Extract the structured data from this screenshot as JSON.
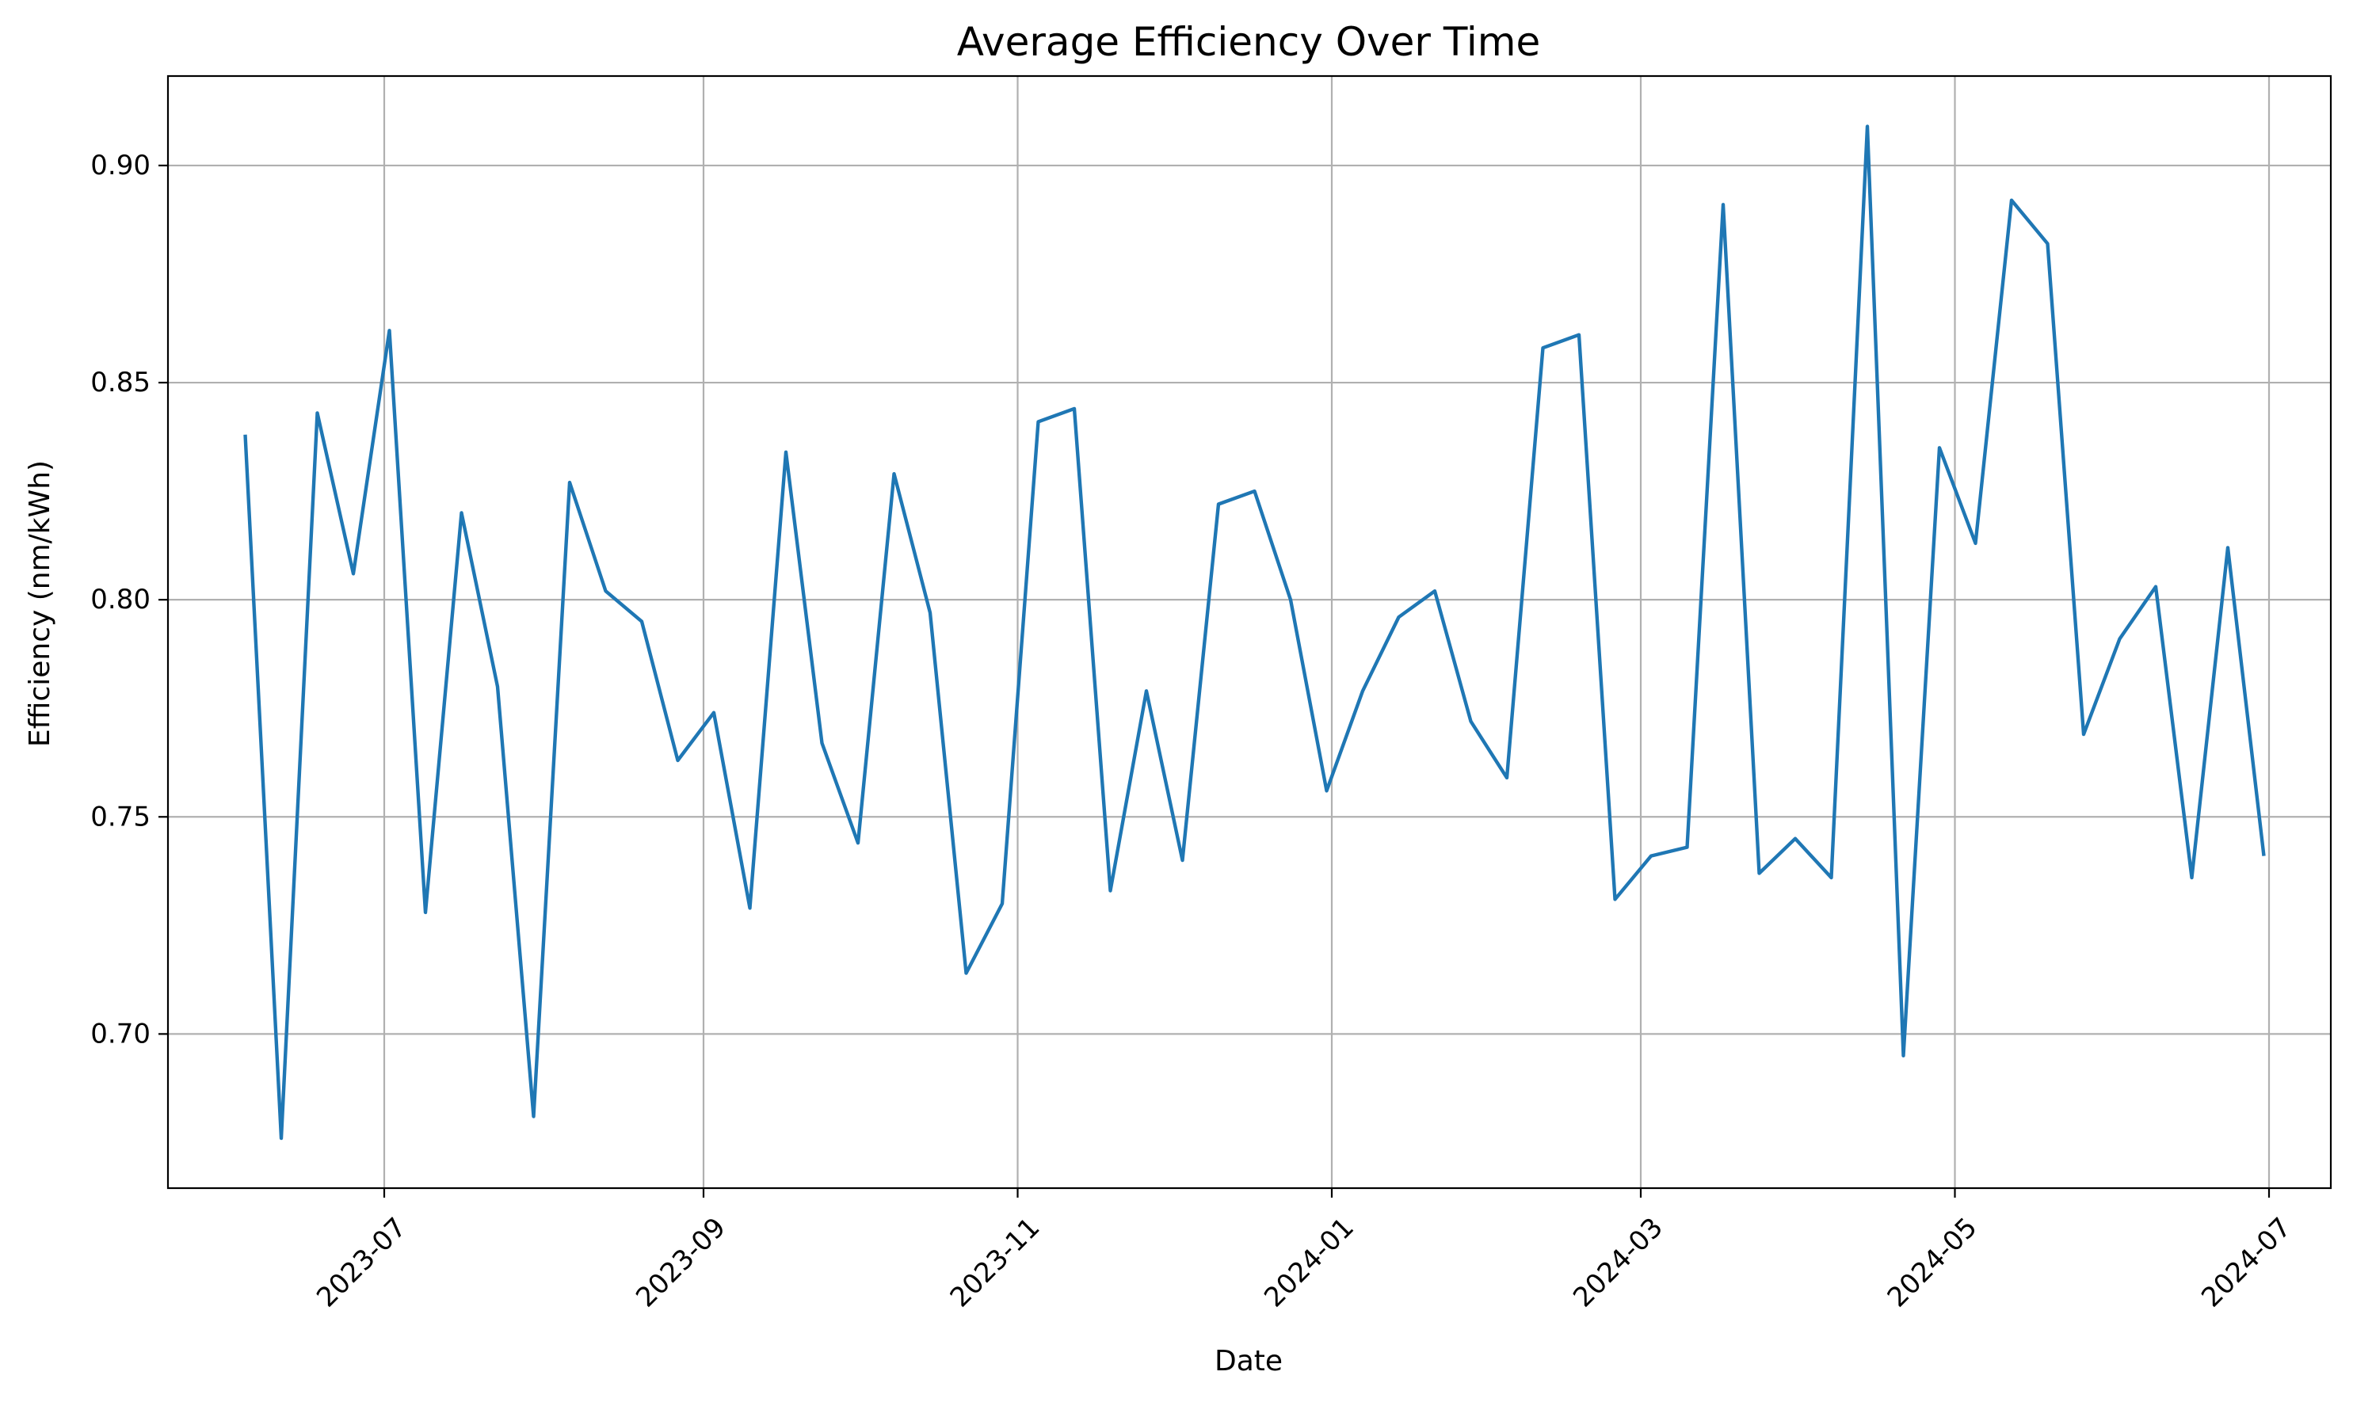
{
  "chart_data": {
    "type": "line",
    "title": "Average Efficiency Over Time",
    "xlabel": "Date",
    "ylabel": "Efficiency (nm/kWh)",
    "x_tick_labels": [
      "2023-07",
      "2023-09",
      "2023-11",
      "2024-01",
      "2024-03",
      "2024-05",
      "2024-07"
    ],
    "x_tick_dates": [
      "2023-07-01",
      "2023-09-01",
      "2023-11-01",
      "2024-01-01",
      "2024-03-01",
      "2024-05-01",
      "2024-07-01"
    ],
    "y_tick_labels": [
      "0.70",
      "0.75",
      "0.80",
      "0.85",
      "0.90"
    ],
    "y_ticks": [
      0.7,
      0.75,
      0.8,
      0.85,
      0.9
    ],
    "xlim": [
      "2023-05-20",
      "2024-07-13"
    ],
    "ylim": [
      0.6645,
      0.9206
    ],
    "grid": true,
    "colors": {
      "series": "#1f77b4",
      "grid": "#b0b0b0"
    },
    "series": [
      {
        "x": [
          "2023-06-04",
          "2023-06-11",
          "2023-06-18",
          "2023-06-25",
          "2023-07-02",
          "2023-07-09",
          "2023-07-16",
          "2023-07-23",
          "2023-07-30",
          "2023-08-06",
          "2023-08-13",
          "2023-08-20",
          "2023-08-27",
          "2023-09-03",
          "2023-09-10",
          "2023-09-17",
          "2023-09-24",
          "2023-10-01",
          "2023-10-08",
          "2023-10-15",
          "2023-10-22",
          "2023-10-29",
          "2023-11-05",
          "2023-11-12",
          "2023-11-19",
          "2023-11-26",
          "2023-12-03",
          "2023-12-10",
          "2023-12-17",
          "2023-12-24",
          "2023-12-31",
          "2024-01-07",
          "2024-01-14",
          "2024-01-21",
          "2024-01-28",
          "2024-02-04",
          "2024-02-11",
          "2024-02-18",
          "2024-02-25",
          "2024-03-03",
          "2024-03-10",
          "2024-03-17",
          "2024-03-24",
          "2024-03-31",
          "2024-04-07",
          "2024-04-14",
          "2024-04-21",
          "2024-04-28",
          "2024-05-05",
          "2024-05-12",
          "2024-05-19",
          "2024-05-26",
          "2024-06-02",
          "2024-06-09",
          "2024-06-16",
          "2024-06-23",
          "2024-06-30"
        ],
        "values": [
          0.838,
          0.676,
          0.843,
          0.806,
          0.862,
          0.728,
          0.82,
          0.78,
          0.681,
          0.827,
          0.802,
          0.795,
          0.763,
          0.774,
          0.729,
          0.834,
          0.767,
          0.744,
          0.829,
          0.797,
          0.714,
          0.73,
          0.841,
          0.844,
          0.733,
          0.779,
          0.74,
          0.822,
          0.825,
          0.8,
          0.756,
          0.779,
          0.796,
          0.802,
          0.772,
          0.759,
          0.858,
          0.861,
          0.731,
          0.741,
          0.743,
          0.891,
          0.737,
          0.745,
          0.736,
          0.909,
          0.695,
          0.835,
          0.813,
          0.892,
          0.882,
          0.769,
          0.791,
          0.803,
          0.736,
          0.812,
          0.741
        ]
      }
    ]
  }
}
